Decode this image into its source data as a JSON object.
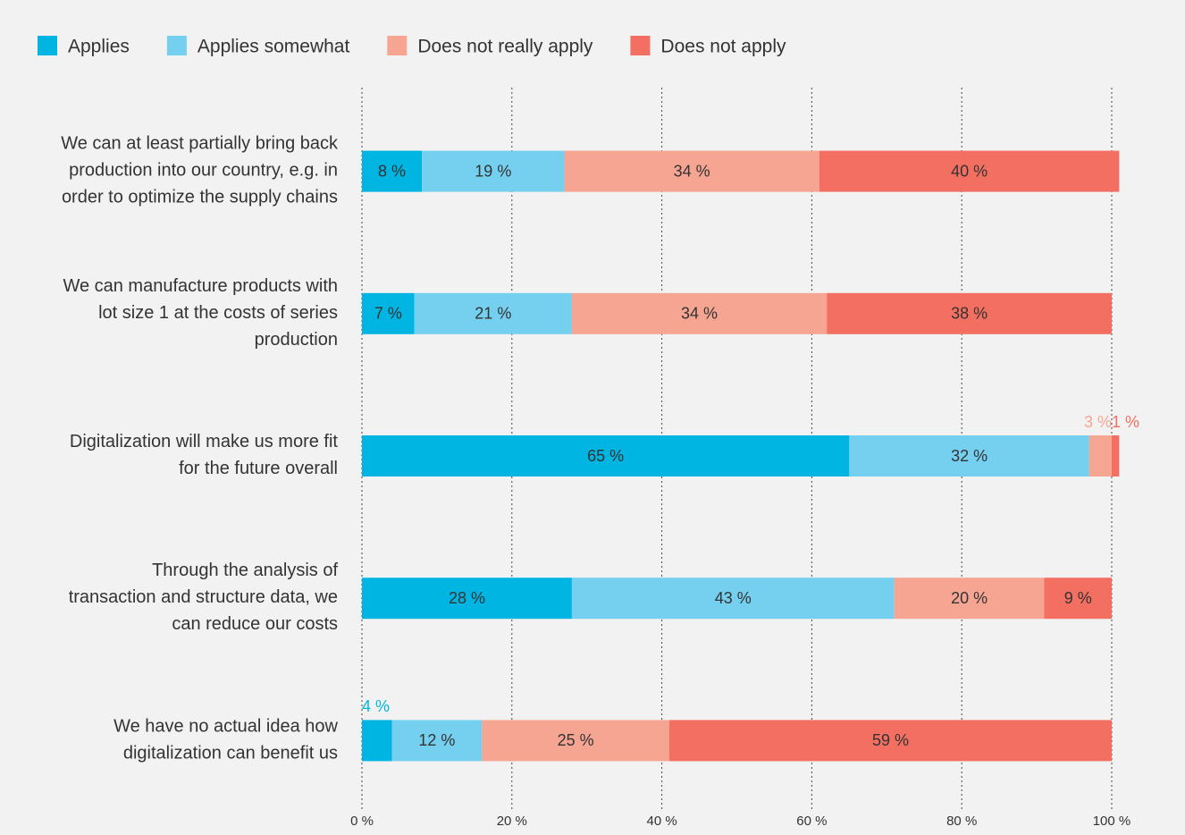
{
  "chart_data": {
    "type": "stacked-barh",
    "categories": [
      "We can at least partially bring back production into our country, e.g. in order to optimize the supply chains",
      "We can manufacture products with lot size 1 at the costs of series production",
      "Digitalization will make us more fit for the future overall",
      "Through the analysis of transaction and structure data, we can reduce our costs",
      "We have no actual idea how digitalization can benefit us"
    ],
    "series": [
      {
        "name": "Applies",
        "color": "#00b5e2",
        "values": [
          8,
          7,
          65,
          28,
          4
        ],
        "value_labels": [
          "8 %",
          "7 %",
          "65 %",
          "28 %",
          "4 %"
        ]
      },
      {
        "name": "Applies somewhat",
        "color": "#75cfee",
        "values": [
          19,
          21,
          32,
          43,
          12
        ],
        "value_labels": [
          "19 %",
          "21 %",
          "32 %",
          "43 %",
          "12 %"
        ]
      },
      {
        "name": "Does not really apply",
        "color": "#f6a593",
        "values": [
          34,
          34,
          3,
          20,
          25
        ],
        "value_labels": [
          "34 %",
          "34 %",
          "3 %",
          "20 %",
          "25 %"
        ]
      },
      {
        "name": "Does not apply",
        "color": "#f26f61",
        "values": [
          40,
          38,
          1,
          9,
          59
        ],
        "value_labels": [
          "40 %",
          "38 %",
          "1 %",
          "9 %",
          "59 %"
        ]
      }
    ],
    "xlim": [
      0,
      100
    ],
    "xticks": [
      {
        "value": 0,
        "label": "0 %"
      },
      {
        "value": 20,
        "label": "20 %"
      },
      {
        "value": 40,
        "label": "40 %"
      },
      {
        "value": 60,
        "label": "60 %"
      },
      {
        "value": 80,
        "label": "80 %"
      },
      {
        "value": 100,
        "label": "100 %"
      }
    ],
    "grid": true,
    "legend": "top"
  }
}
